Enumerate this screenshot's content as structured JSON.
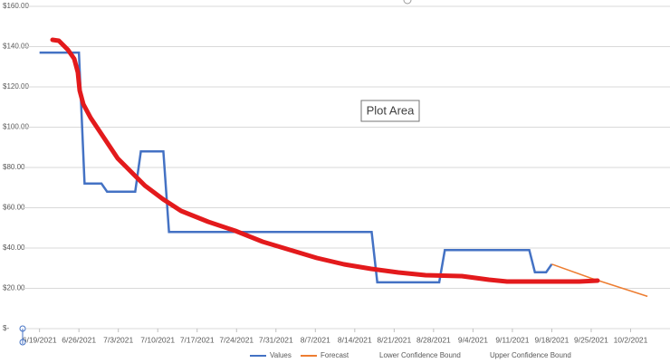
{
  "chart_data": {
    "type": "line",
    "annotation": "Plot Area",
    "xlim": [
      "6/16/2021",
      "10/9/2021"
    ],
    "xticks": [
      "6/19/2021",
      "6/26/2021",
      "7/3/2021",
      "7/10/2021",
      "7/17/2021",
      "7/24/2021",
      "7/31/2021",
      "8/7/2021",
      "8/14/2021",
      "8/21/2021",
      "8/28/2021",
      "9/4/2021",
      "9/11/2021",
      "9/18/2021",
      "9/25/2021",
      "10/2/2021"
    ],
    "ylim": [
      0,
      160
    ],
    "yticks": [
      {
        "value": 0,
        "label": "$-"
      },
      {
        "value": 20,
        "label": "$20.00"
      },
      {
        "value": 40,
        "label": "$40.00"
      },
      {
        "value": 60,
        "label": "$60.00"
      },
      {
        "value": 80,
        "label": "$80.00"
      },
      {
        "value": 100,
        "label": "$100.00"
      },
      {
        "value": 120,
        "label": "$120.00"
      },
      {
        "value": 140,
        "label": "$140.00"
      },
      {
        "value": 160,
        "label": "$160.00"
      }
    ],
    "grid": true,
    "legend": "bottom",
    "series": [
      {
        "name": "Values",
        "color": "#4472c4",
        "x": [
          "6/19/2021",
          "6/26/2021",
          "6/27/2021",
          "6/30/2021",
          "7/1/2021",
          "7/6/2021",
          "7/7/2021",
          "7/11/2021",
          "7/12/2021",
          "8/17/2021",
          "8/18/2021",
          "8/29/2021",
          "8/30/2021",
          "9/14/2021",
          "9/15/2021",
          "9/17/2021",
          "9/18/2021"
        ],
        "values": [
          137,
          137,
          72,
          72,
          68,
          68,
          88,
          88,
          48,
          48,
          23,
          23,
          39,
          39,
          28,
          28,
          32
        ]
      },
      {
        "name": "Forecast",
        "color": "#ed7d31",
        "x": [
          "9/18/2021",
          "9/25/2021",
          "10/5/2021"
        ],
        "values": [
          32,
          25,
          16
        ]
      },
      {
        "name": "Lower Confidence Bound",
        "color": "#a5a5a5",
        "x": [],
        "values": []
      },
      {
        "name": "Upper Confidence Bound",
        "color": "#ffc000",
        "x": [],
        "values": []
      }
    ]
  }
}
